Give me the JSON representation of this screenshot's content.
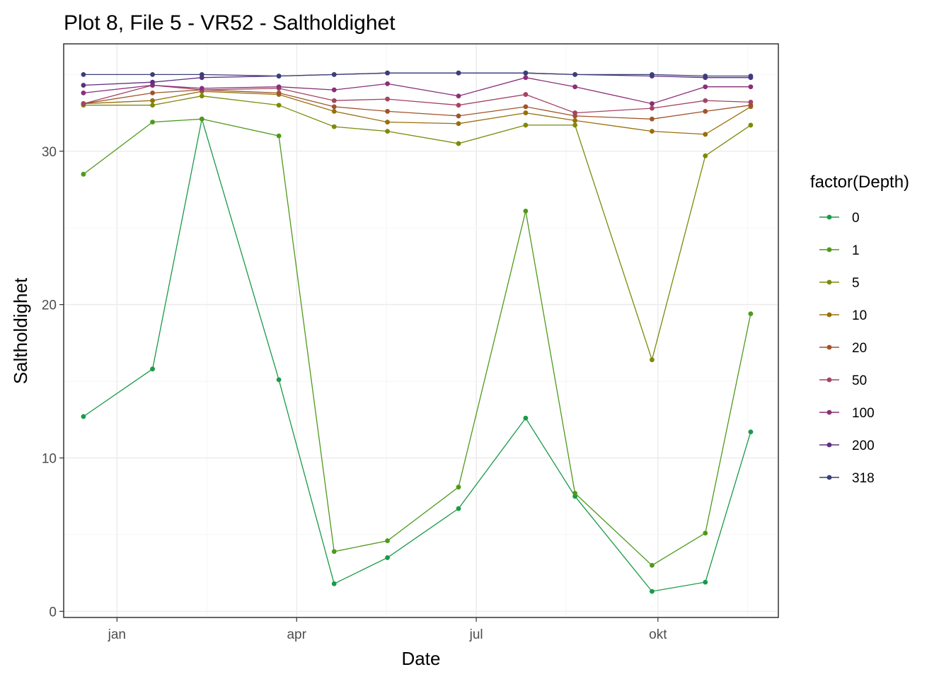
{
  "chart_data": {
    "type": "line",
    "title": "Plot 8, File 5 - VR52  -  Saltholdighet",
    "xlabel": "Date",
    "ylabel": "Saltholdighet",
    "x": [
      "2019-12-15",
      "2020-01-19",
      "2020-02-13",
      "2020-03-23",
      "2020-04-20",
      "2020-05-17",
      "2020-06-22",
      "2020-07-26",
      "2020-08-20",
      "2020-09-28",
      "2020-10-25",
      "2020-11-17"
    ],
    "x_ticks": [
      {
        "date": "2020-01-01",
        "label": "jan"
      },
      {
        "date": "2020-04-01",
        "label": "apr"
      },
      {
        "date": "2020-07-01",
        "label": "jul"
      },
      {
        "date": "2020-10-01",
        "label": "okt"
      }
    ],
    "xlim": [
      "2019-12-05",
      "2020-12-01"
    ],
    "ylim": [
      -0.4,
      37.0
    ],
    "y_ticks": [
      0,
      10,
      20,
      30
    ],
    "grid": true,
    "legend": {
      "title": "factor(Depth)",
      "position": "right"
    },
    "series": [
      {
        "name": "0",
        "color": "#1a9a48",
        "values": [
          12.7,
          15.8,
          32.1,
          15.1,
          1.8,
          3.5,
          6.7,
          12.6,
          7.5,
          1.3,
          1.9,
          11.7
        ]
      },
      {
        "name": "1",
        "color": "#4e9a1c",
        "values": [
          28.5,
          31.9,
          32.1,
          31.0,
          3.9,
          4.6,
          8.1,
          26.1,
          7.7,
          3.0,
          5.1,
          19.4
        ]
      },
      {
        "name": "5",
        "color": "#7d8a0a",
        "values": [
          33.0,
          33.0,
          33.6,
          33.0,
          31.6,
          31.3,
          30.5,
          31.7,
          31.7,
          16.4,
          29.7,
          31.7
        ]
      },
      {
        "name": "10",
        "color": "#98700a",
        "values": [
          33.1,
          33.3,
          33.9,
          33.7,
          32.6,
          31.9,
          31.8,
          32.5,
          32.0,
          31.3,
          31.1,
          32.9
        ]
      },
      {
        "name": "20",
        "color": "#a0542a",
        "values": [
          33.1,
          33.8,
          34.0,
          33.8,
          32.9,
          32.6,
          32.3,
          32.9,
          32.3,
          32.1,
          32.6,
          33.0
        ]
      },
      {
        "name": "50",
        "color": "#a44465",
        "values": [
          33.1,
          34.3,
          34.0,
          34.1,
          33.3,
          33.4,
          33.0,
          33.7,
          32.5,
          32.8,
          33.3,
          33.2
        ]
      },
      {
        "name": "100",
        "color": "#8a2f78",
        "values": [
          33.8,
          34.3,
          34.1,
          34.2,
          34.0,
          34.4,
          33.6,
          34.8,
          34.2,
          33.1,
          34.2,
          34.2
        ]
      },
      {
        "name": "200",
        "color": "#5e2f82",
        "values": [
          34.3,
          34.5,
          34.8,
          34.9,
          35.0,
          35.1,
          35.1,
          35.1,
          35.0,
          34.9,
          34.8,
          34.8
        ]
      },
      {
        "name": "318",
        "color": "#3a3f78",
        "values": [
          35.0,
          35.0,
          35.0,
          34.9,
          35.0,
          35.1,
          35.1,
          35.1,
          35.0,
          35.0,
          34.9,
          34.9
        ]
      }
    ]
  }
}
